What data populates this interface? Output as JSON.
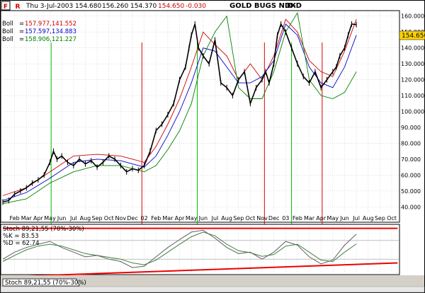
{
  "header": {
    "flags": [
      "F",
      "R"
    ],
    "date": "Thu 3-Jul-2003",
    "open": "154.680",
    "high": "156.260",
    "low": "154.370",
    "close": "154.650",
    "change": "-0.030",
    "title": "GOLD BUGS NDX",
    "period": "D-D"
  },
  "legend": [
    {
      "label": "Boll",
      "value": "157.977,141.552",
      "color": "#cc0000"
    },
    {
      "label": "Boll",
      "value": "157.597,134.883",
      "color": "#0000cc"
    },
    {
      "label": "Boll",
      "value": "158.906,121.227",
      "color": "#008000"
    }
  ],
  "price_tag": "154.650",
  "stoch_legend": {
    "title": "Stoch 89,21,55 (70%-30%)",
    "k": "%K = 83.53",
    "d": "%D = 62.74"
  },
  "tab_label": "Stoch 89,21,55 (70%-30%)",
  "colors": {
    "price": "#000000",
    "boll_red": "#cc0000",
    "boll_blue": "#0000cc",
    "boll_green": "#008000",
    "trend": "#ee0000",
    "k_line": "#606060",
    "d_line": "#408040",
    "grid": "#c8c8c8"
  },
  "chart_data": [
    {
      "type": "line",
      "title": "GOLD BUGS NDX",
      "ylim": [
        37,
        163
      ],
      "yticks": [
        40,
        50,
        60,
        70,
        80,
        90,
        100,
        110,
        120,
        130,
        140,
        150,
        160
      ],
      "ytick_labels": [
        "40.000",
        "50.000",
        "60.000",
        "70.000",
        "80.000",
        "90.000",
        "100.000",
        "110.000",
        "120.000",
        "130.000",
        "140.000",
        "150.000",
        "160.000"
      ],
      "xticks": [
        {
          "label": "Feb",
          "x": 1
        },
        {
          "label": "Mar",
          "x": 2
        },
        {
          "label": "Apr",
          "x": 3
        },
        {
          "label": "May",
          "x": 4
        },
        {
          "label": "Jun",
          "x": 5
        },
        {
          "label": "Jul",
          "x": 6
        },
        {
          "label": "Aug",
          "x": 7
        },
        {
          "label": "Sep",
          "x": 8
        },
        {
          "label": "Oct",
          "x": 9
        },
        {
          "label": "Nov",
          "x": 10
        },
        {
          "label": "Dec",
          "x": 11
        },
        {
          "label": "02",
          "x": 12
        },
        {
          "label": "Feb",
          "x": 13
        },
        {
          "label": "Mar",
          "x": 14
        },
        {
          "label": "Apr",
          "x": 15
        },
        {
          "label": "May",
          "x": 16
        },
        {
          "label": "Jun",
          "x": 17
        },
        {
          "label": "Jul",
          "x": 18
        },
        {
          "label": "Aug",
          "x": 19
        },
        {
          "label": "Sep",
          "x": 20
        },
        {
          "label": "Oct",
          "x": 21
        },
        {
          "label": "Nov",
          "x": 22
        },
        {
          "label": "Dec",
          "x": 23
        },
        {
          "label": "03",
          "x": 24
        },
        {
          "label": "Feb",
          "x": 25
        },
        {
          "label": "Mar",
          "x": 26
        },
        {
          "label": "Apr",
          "x": 27
        },
        {
          "label": "May",
          "x": 28
        },
        {
          "label": "Jun",
          "x": 29
        },
        {
          "label": "Jul",
          "x": 30
        },
        {
          "label": "Aug",
          "x": 31
        },
        {
          "label": "Sep",
          "x": 32
        },
        {
          "label": "Oct",
          "x": 33
        }
      ],
      "xlim": [
        0,
        33.6
      ],
      "grid": true,
      "series": [
        {
          "name": "GOLD BUGS NDX",
          "kind": "price",
          "x": [
            0,
            0.5,
            1,
            1.5,
            2,
            2.5,
            3,
            3.5,
            4,
            4.3,
            4.6,
            5,
            5.5,
            6,
            6.5,
            7,
            7.5,
            8,
            8.5,
            9,
            9.5,
            10,
            10.5,
            11,
            11.5,
            12,
            12.5,
            13,
            13.5,
            14,
            14.5,
            15,
            15.5,
            15.8,
            16,
            16.3,
            16.6,
            17,
            17.5,
            18,
            18.5,
            19,
            19.5,
            20,
            20.5,
            21,
            21.5,
            22,
            22.3,
            22.6,
            23,
            23.3,
            23.6,
            24,
            24.5,
            25,
            25.5,
            26,
            26.5,
            27,
            27.5,
            28,
            28.3,
            28.6,
            29,
            29.3,
            29.6,
            30
          ],
          "y": [
            43,
            44,
            48,
            50,
            52,
            55,
            57,
            60,
            68,
            75,
            70,
            72,
            68,
            66,
            70,
            67,
            69,
            65,
            68,
            72,
            70,
            66,
            62,
            64,
            63,
            66,
            75,
            88,
            92,
            98,
            105,
            120,
            128,
            140,
            148,
            155,
            140,
            135,
            130,
            145,
            118,
            115,
            110,
            120,
            125,
            105,
            115,
            120,
            125,
            118,
            130,
            148,
            155,
            150,
            140,
            130,
            122,
            118,
            125,
            115,
            120,
            125,
            128,
            135,
            140,
            148,
            155,
            154.65
          ]
        },
        {
          "name": "Boll",
          "kind": "band",
          "color": "#cc0000",
          "x": [
            0,
            2,
            4,
            6,
            8,
            10,
            12,
            13,
            14,
            15,
            16,
            17,
            18,
            19,
            20,
            21,
            22,
            23,
            24,
            25,
            26,
            27,
            28,
            29,
            30
          ],
          "y": [
            47,
            52,
            62,
            72,
            73,
            72,
            68,
            78,
            92,
            108,
            128,
            150,
            142,
            135,
            120,
            130,
            120,
            135,
            158,
            150,
            132,
            125,
            122,
            138,
            158
          ]
        },
        {
          "name": "Boll",
          "kind": "band",
          "color": "#0000cc",
          "x": [
            0,
            2,
            4,
            6,
            8,
            10,
            12,
            13,
            14,
            15,
            16,
            17,
            18,
            19,
            20,
            21,
            22,
            23,
            24,
            25,
            26,
            27,
            28,
            29,
            30
          ],
          "y": [
            44,
            49,
            58,
            68,
            70,
            69,
            65,
            72,
            85,
            100,
            118,
            140,
            138,
            128,
            118,
            118,
            122,
            132,
            155,
            148,
            128,
            118,
            115,
            128,
            148
          ]
        },
        {
          "name": "Boll",
          "kind": "band",
          "color": "#008000",
          "x": [
            0,
            2,
            4,
            6,
            8,
            10,
            12,
            13,
            14,
            15,
            16,
            17,
            18,
            19,
            20,
            21,
            22,
            23,
            24,
            25,
            26,
            27,
            28,
            29,
            30
          ],
          "y": [
            42,
            45,
            55,
            62,
            66,
            66,
            62,
            66,
            76,
            88,
            105,
            135,
            150,
            160,
            115,
            108,
            108,
            125,
            150,
            162,
            120,
            110,
            108,
            112,
            125
          ]
        }
      ],
      "markers": [
        {
          "x": 4.1,
          "color": "#00bb00"
        },
        {
          "x": 11.8,
          "color": "#dd0000"
        },
        {
          "x": 16.5,
          "color": "#00bb00"
        },
        {
          "x": 22.2,
          "color": "#dd0000"
        },
        {
          "x": 24.5,
          "color": "#00bb00"
        },
        {
          "x": 27.1,
          "color": "#dd0000"
        }
      ]
    },
    {
      "type": "line",
      "title": "Stoch 89,21,55 (70%-30%)",
      "ylim": [
        0,
        100
      ],
      "reference_lines": [
        70,
        30
      ],
      "series": [
        {
          "name": "%K",
          "x": [
            0,
            1,
            2,
            3,
            4,
            5,
            6,
            7,
            8,
            9,
            10,
            11,
            12,
            13,
            14,
            15,
            16,
            17,
            18,
            19,
            20,
            21,
            22,
            23,
            24,
            25,
            26,
            27,
            28,
            29,
            30
          ],
          "y": [
            30,
            45,
            55,
            62,
            68,
            55,
            45,
            35,
            38,
            30,
            25,
            12,
            15,
            35,
            55,
            72,
            88,
            92,
            75,
            55,
            42,
            45,
            30,
            45,
            68,
            60,
            35,
            20,
            28,
            60,
            83.53
          ]
        },
        {
          "name": "%D",
          "x": [
            0,
            1,
            2,
            3,
            4,
            5,
            6,
            7,
            8,
            9,
            10,
            11,
            12,
            13,
            14,
            15,
            16,
            17,
            18,
            19,
            20,
            21,
            22,
            23,
            24,
            25,
            26,
            27,
            28,
            29,
            30
          ],
          "y": [
            25,
            38,
            50,
            58,
            62,
            58,
            50,
            42,
            38,
            34,
            30,
            22,
            18,
            28,
            45,
            62,
            78,
            88,
            80,
            62,
            48,
            44,
            36,
            40,
            58,
            62,
            45,
            28,
            25,
            45,
            62.74
          ]
        }
      ],
      "trendlines": [
        {
          "color": "#ee0000",
          "points": [
            [
              0,
              96
            ],
            [
              33.5,
              96
            ]
          ]
        },
        {
          "color": "#ee0000",
          "points": [
            [
              0,
              -8
            ],
            [
              33.5,
              22
            ]
          ]
        }
      ]
    }
  ]
}
